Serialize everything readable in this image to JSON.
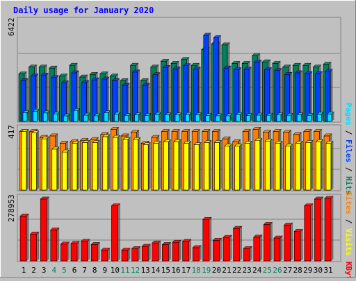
{
  "title": "Daily usage for January 2020",
  "colors": {
    "background": "#c0c0c0",
    "panel": "#c0c0c0",
    "title": "#0000ff",
    "hits": "#00805c",
    "files": "#0040ff",
    "pages": "#00e0ff",
    "visits": "#ffff00",
    "sites": "#ff8000",
    "kbytes": "#ff0000",
    "weekend_label": "#00805c",
    "grid": "#808080"
  },
  "chart_data": [
    {
      "type": "bar",
      "categories": [
        "1",
        "2",
        "3",
        "4",
        "5",
        "6",
        "7",
        "8",
        "9",
        "10",
        "11",
        "12",
        "13",
        "14",
        "15",
        "16",
        "17",
        "18",
        "19",
        "20",
        "21",
        "22",
        "23",
        "24",
        "25",
        "26",
        "27",
        "28",
        "29",
        "30",
        "31"
      ],
      "weekend_days": [
        "4",
        "5",
        "11",
        "12",
        "18",
        "19",
        "25",
        "26"
      ],
      "ymax_label": "6422",
      "ylim": [
        0,
        6422
      ],
      "grid": true,
      "series": [
        {
          "name": "Hits",
          "values": [
            3030,
            3470,
            3470,
            3400,
            2900,
            3580,
            2830,
            3000,
            3030,
            2900,
            2600,
            3580,
            2600,
            3470,
            3830,
            3700,
            3950,
            3580,
            4580,
            4950,
            4880,
            3700,
            3700,
            4200,
            3800,
            3700,
            3470,
            3580,
            3580,
            3470,
            3650
          ]
        },
        {
          "name": "Files",
          "values": [
            2600,
            2900,
            2950,
            2800,
            2450,
            3100,
            2480,
            2650,
            2700,
            2600,
            2300,
            3150,
            2300,
            2980,
            3440,
            3350,
            3560,
            3330,
            5500,
            5350,
            3400,
            3300,
            3330,
            3780,
            3300,
            3250,
            3000,
            3100,
            3050,
            3050,
            3200
          ]
        },
        {
          "name": "Pages",
          "values": [
            560,
            650,
            540,
            480,
            350,
            700,
            400,
            360,
            550,
            460,
            370,
            420,
            380,
            450,
            420,
            410,
            440,
            420,
            380,
            360,
            360,
            440,
            370,
            400,
            390,
            410,
            390,
            420,
            380,
            470,
            480
          ]
        }
      ]
    },
    {
      "type": "bar",
      "categories": [
        "1",
        "2",
        "3",
        "4",
        "5",
        "6",
        "7",
        "8",
        "9",
        "10",
        "11",
        "12",
        "13",
        "14",
        "15",
        "16",
        "17",
        "18",
        "19",
        "20",
        "21",
        "22",
        "23",
        "24",
        "25",
        "26",
        "27",
        "28",
        "29",
        "30",
        "31"
      ],
      "ymax_label": "417",
      "ylim": [
        0,
        417
      ],
      "series": [
        {
          "name": "Sites",
          "values": [
            400,
            400,
            360,
            370,
            320,
            330,
            340,
            345,
            380,
            415,
            370,
            395,
            320,
            360,
            400,
            400,
            400,
            400,
            400,
            400,
            350,
            330,
            400,
            415,
            395,
            400,
            395,
            380,
            400,
            400,
            370
          ]
        },
        {
          "name": "Visits",
          "values": [
            400,
            390,
            350,
            280,
            260,
            320,
            325,
            325,
            365,
            360,
            345,
            345,
            310,
            320,
            330,
            330,
            320,
            310,
            325,
            325,
            300,
            300,
            320,
            340,
            335,
            320,
            300,
            320,
            325,
            330,
            320
          ]
        }
      ]
    },
    {
      "type": "bar",
      "categories": [
        "1",
        "2",
        "3",
        "4",
        "5",
        "6",
        "7",
        "8",
        "9",
        "10",
        "11",
        "12",
        "13",
        "14",
        "15",
        "16",
        "17",
        "18",
        "19",
        "20",
        "21",
        "22",
        "23",
        "24",
        "25",
        "26",
        "27",
        "28",
        "29",
        "30",
        "31"
      ],
      "ymax_label": "278953",
      "ylim": [
        0,
        278953
      ],
      "series": [
        {
          "name": "KBytes",
          "values": [
            200000,
            120000,
            276000,
            138000,
            75000,
            78000,
            87000,
            73000,
            48000,
            246000,
            48000,
            55000,
            65000,
            80000,
            73000,
            83000,
            87000,
            59000,
            185000,
            92000,
            105000,
            145000,
            55000,
            106000,
            163000,
            102000,
            160000,
            132000,
            246000,
            276000,
            279000
          ]
        }
      ]
    }
  ],
  "panel_labels": {
    "top": {
      "pages": "Pages",
      "files": "Files",
      "hits": "Hits",
      "sep": " / "
    },
    "middle": {
      "sites": "Sites",
      "visits": "Visits",
      "sep": " / "
    },
    "bottom": {
      "kbytes": "KBytes"
    }
  }
}
